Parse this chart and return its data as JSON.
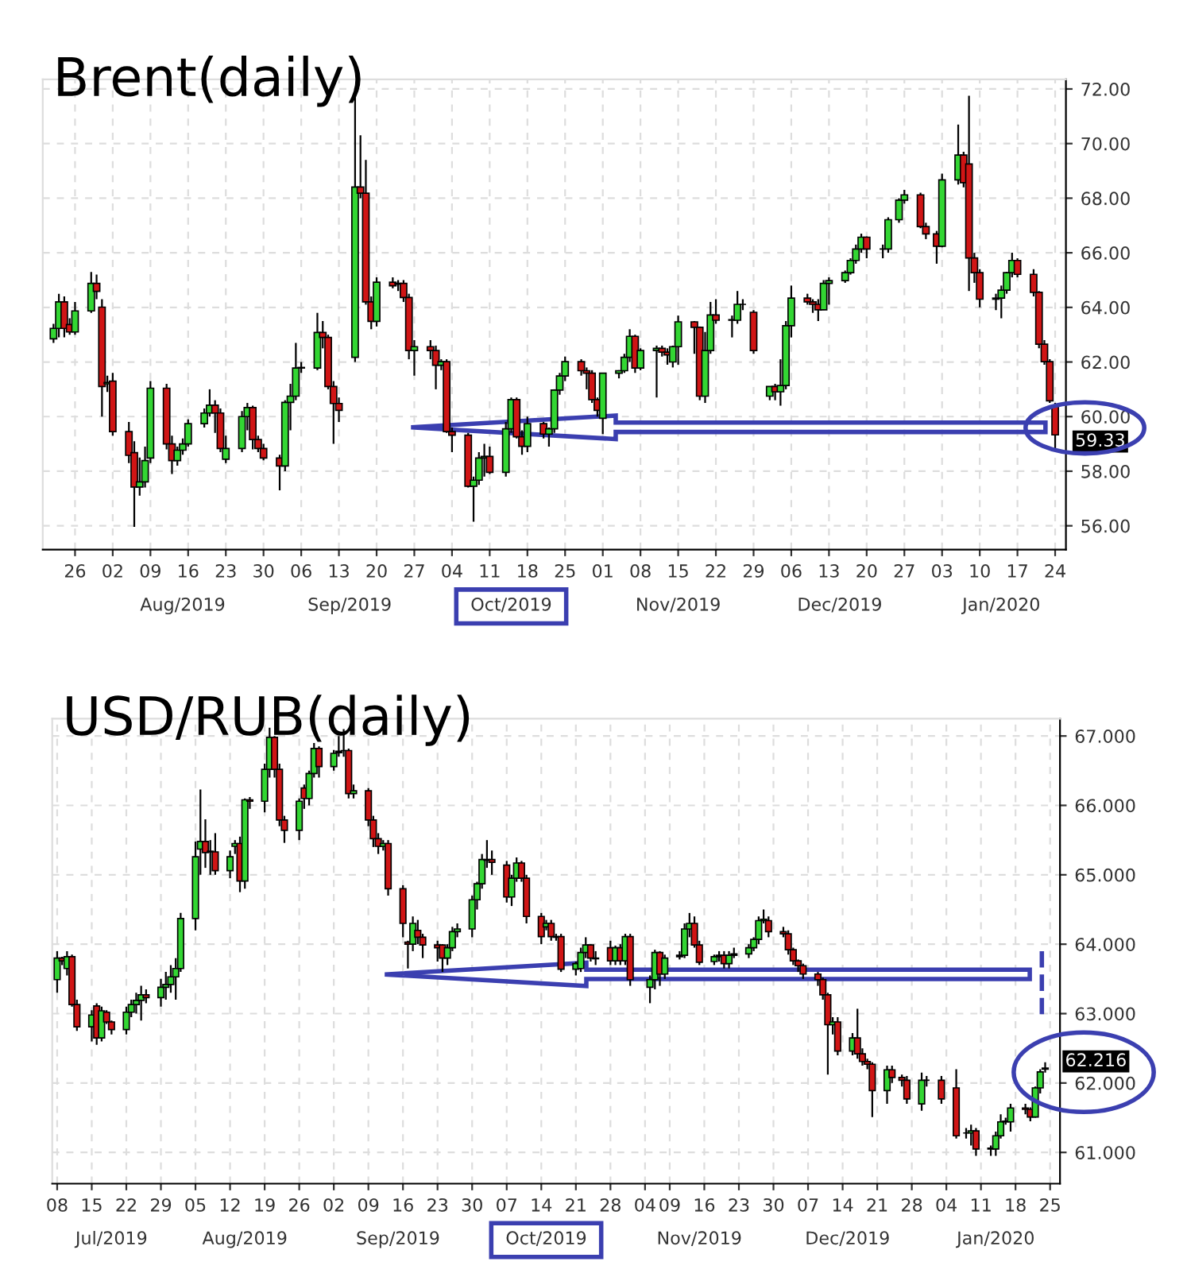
{
  "chart_data": [
    {
      "type": "candlestick",
      "title": "Brent(daily)",
      "x": [
        "2019-07-22",
        "2019-07-23",
        "2019-07-24",
        "2019-07-25",
        "2019-07-26",
        "2019-07-29",
        "2019-07-30",
        "2019-07-31",
        "2019-08-01",
        "2019-08-02",
        "2019-08-05",
        "2019-08-06",
        "2019-08-07",
        "2019-08-08",
        "2019-08-09",
        "2019-08-12",
        "2019-08-13",
        "2019-08-14",
        "2019-08-15",
        "2019-08-16",
        "2019-08-19",
        "2019-08-20",
        "2019-08-21",
        "2019-08-22",
        "2019-08-23",
        "2019-08-26",
        "2019-08-27",
        "2019-08-28",
        "2019-08-29",
        "2019-08-30",
        "2019-09-02",
        "2019-09-03",
        "2019-09-04",
        "2019-09-05",
        "2019-09-06",
        "2019-09-09",
        "2019-09-10",
        "2019-09-11",
        "2019-09-12",
        "2019-09-13",
        "2019-09-16",
        "2019-09-17",
        "2019-09-18",
        "2019-09-19",
        "2019-09-20",
        "2019-09-23",
        "2019-09-24",
        "2019-09-25",
        "2019-09-26",
        "2019-09-27",
        "2019-09-30",
        "2019-10-01",
        "2019-10-02",
        "2019-10-03",
        "2019-10-04",
        "2019-10-07",
        "2019-10-08",
        "2019-10-09",
        "2019-10-10",
        "2019-10-11",
        "2019-10-14",
        "2019-10-15",
        "2019-10-16",
        "2019-10-17",
        "2019-10-18",
        "2019-10-21",
        "2019-10-22",
        "2019-10-23",
        "2019-10-24",
        "2019-10-25",
        "2019-10-28",
        "2019-10-29",
        "2019-10-30",
        "2019-10-31",
        "2019-11-01",
        "2019-11-04",
        "2019-11-05",
        "2019-11-06",
        "2019-11-07",
        "2019-11-08",
        "2019-11-11",
        "2019-11-12",
        "2019-11-13",
        "2019-11-14",
        "2019-11-15",
        "2019-11-18",
        "2019-11-19",
        "2019-11-20",
        "2019-11-21",
        "2019-11-22",
        "2019-11-25",
        "2019-11-26",
        "2019-11-27",
        "2019-11-29",
        "2019-12-02",
        "2019-12-03",
        "2019-12-04",
        "2019-12-05",
        "2019-12-06",
        "2019-12-09",
        "2019-12-10",
        "2019-12-11",
        "2019-12-12",
        "2019-12-13",
        "2019-12-16",
        "2019-12-17",
        "2019-12-18",
        "2019-12-19",
        "2019-12-20",
        "2019-12-23",
        "2019-12-24",
        "2019-12-26",
        "2019-12-27",
        "2019-12-30",
        "2019-12-31",
        "2020-01-02",
        "2020-01-03",
        "2020-01-06",
        "2020-01-07",
        "2020-01-08",
        "2020-01-09",
        "2020-01-10",
        "2020-01-13",
        "2020-01-14",
        "2020-01-15",
        "2020-01-16",
        "2020-01-17",
        "2020-01-20",
        "2020-01-21",
        "2020-01-22",
        "2020-01-23",
        "2020-01-24"
      ],
      "ohlc": [
        [
          62.85,
          63.4,
          62.7,
          63.23
        ],
        [
          63.23,
          64.5,
          62.9,
          64.2
        ],
        [
          64.2,
          64.4,
          62.9,
          63.23
        ],
        [
          63.37,
          63.6,
          63.0,
          63.1
        ],
        [
          63.1,
          64.2,
          63.0,
          63.87
        ],
        [
          63.87,
          65.3,
          63.8,
          64.88
        ],
        [
          64.88,
          65.2,
          64.3,
          64.59
        ],
        [
          64.01,
          64.3,
          60.0,
          61.1
        ],
        [
          61.2,
          61.5,
          60.9,
          61.25
        ],
        [
          61.3,
          61.6,
          59.3,
          59.45
        ],
        [
          59.45,
          59.8,
          58.3,
          58.58
        ],
        [
          58.68,
          59.1,
          55.96,
          57.42
        ],
        [
          57.42,
          58.5,
          57.1,
          57.61
        ],
        [
          57.61,
          58.9,
          57.4,
          58.39
        ],
        [
          58.48,
          61.3,
          58.3,
          61.04
        ],
        [
          61.04,
          61.2,
          58.8,
          59.0
        ],
        [
          59.0,
          59.3,
          57.9,
          58.39
        ],
        [
          58.39,
          58.9,
          58.2,
          58.77
        ],
        [
          58.77,
          59.2,
          58.6,
          59.0
        ],
        [
          59.0,
          59.9,
          58.9,
          59.74
        ],
        [
          59.74,
          60.3,
          59.6,
          60.13
        ],
        [
          60.13,
          61.0,
          60.0,
          60.42
        ],
        [
          60.42,
          60.6,
          59.4,
          60.13
        ],
        [
          60.13,
          60.3,
          58.7,
          58.83
        ],
        [
          58.44,
          59.3,
          58.3,
          58.83
        ],
        [
          58.83,
          60.2,
          58.7,
          60.0
        ],
        [
          60.0,
          60.5,
          59.5,
          60.33
        ],
        [
          60.33,
          60.4,
          58.8,
          59.16
        ],
        [
          59.16,
          59.3,
          58.7,
          58.83
        ],
        [
          58.83,
          59.0,
          58.4,
          58.48
        ],
        [
          58.48,
          58.6,
          57.3,
          58.19
        ],
        [
          58.19,
          60.6,
          58.0,
          60.52
        ],
        [
          60.52,
          61.2,
          59.5,
          60.75
        ],
        [
          60.75,
          62.7,
          60.6,
          61.78
        ],
        [
          61.78,
          62.0,
          61.6,
          61.8
        ],
        [
          61.78,
          63.8,
          61.7,
          63.08
        ],
        [
          63.08,
          63.5,
          62.5,
          62.9
        ],
        [
          62.9,
          63.0,
          61.0,
          61.1
        ],
        [
          61.1,
          61.3,
          59.0,
          60.48
        ],
        [
          60.48,
          60.7,
          59.8,
          60.23
        ],
        [
          62.17,
          71.8,
          62.0,
          68.41
        ],
        [
          68.41,
          70.3,
          68.0,
          68.18
        ],
        [
          68.18,
          69.4,
          64.1,
          64.2
        ],
        [
          64.2,
          64.4,
          63.2,
          63.49
        ],
        [
          63.49,
          65.1,
          63.3,
          64.92
        ],
        [
          64.92,
          65.1,
          64.7,
          64.79
        ],
        [
          64.85,
          65.0,
          64.6,
          64.88
        ],
        [
          64.88,
          65.0,
          64.2,
          64.36
        ],
        [
          64.36,
          64.5,
          62.1,
          62.42
        ],
        [
          62.42,
          62.8,
          61.5,
          62.56
        ],
        [
          62.56,
          62.8,
          62.1,
          62.42
        ],
        [
          62.42,
          62.6,
          61.0,
          61.88
        ],
        [
          61.88,
          62.1,
          61.7,
          62.01
        ],
        [
          62.01,
          62.1,
          59.4,
          59.45
        ],
        [
          59.45,
          59.6,
          58.7,
          59.32
        ],
        [
          59.32,
          59.4,
          57.4,
          57.45
        ],
        [
          57.45,
          57.8,
          56.15,
          57.67
        ],
        [
          57.67,
          58.7,
          57.5,
          58.48
        ],
        [
          58.48,
          59.0,
          57.8,
          58.54
        ],
        [
          58.54,
          58.9,
          57.9,
          57.96
        ],
        [
          57.96,
          59.8,
          57.8,
          59.55
        ],
        [
          59.55,
          60.7,
          59.4,
          60.62
        ],
        [
          60.62,
          60.7,
          59.2,
          59.26
        ],
        [
          59.26,
          59.5,
          58.6,
          58.91
        ],
        [
          58.91,
          60.0,
          58.7,
          59.74
        ],
        [
          59.74,
          59.8,
          59.2,
          59.36
        ],
        [
          59.36,
          59.6,
          58.9,
          59.55
        ],
        [
          59.55,
          61.0,
          59.4,
          60.97
        ],
        [
          60.97,
          61.6,
          60.8,
          61.49
        ],
        [
          61.49,
          62.2,
          61.3,
          62.01
        ],
        [
          62.01,
          62.1,
          61.5,
          61.68
        ],
        [
          61.68,
          61.8,
          61.0,
          61.59
        ],
        [
          61.59,
          61.7,
          60.5,
          60.62
        ],
        [
          60.62,
          60.7,
          60.0,
          60.23
        ],
        [
          59.94,
          61.6,
          59.36,
          61.59
        ],
        [
          61.59,
          61.7,
          61.4,
          61.68
        ],
        [
          61.68,
          62.3,
          61.6,
          62.17
        ],
        [
          62.17,
          63.2,
          62.0,
          62.94
        ],
        [
          62.94,
          63.0,
          61.6,
          61.78
        ],
        [
          61.78,
          62.5,
          61.7,
          62.42
        ],
        [
          62.42,
          62.6,
          60.7,
          62.5
        ],
        [
          62.5,
          62.6,
          62.2,
          62.36
        ],
        [
          62.36,
          62.5,
          61.9,
          62.26
        ],
        [
          62.0,
          62.6,
          61.8,
          62.56
        ],
        [
          62.56,
          63.7,
          61.9,
          63.47
        ],
        [
          63.47,
          63.5,
          62.3,
          63.27
        ],
        [
          63.27,
          63.3,
          60.6,
          60.75
        ],
        [
          60.75,
          63.1,
          60.5,
          62.42
        ],
        [
          62.42,
          64.2,
          62.3,
          63.72
        ],
        [
          63.72,
          64.3,
          63.4,
          63.53
        ],
        [
          63.53,
          63.7,
          62.9,
          63.55
        ],
        [
          63.53,
          64.6,
          63.4,
          64.11
        ],
        [
          64.11,
          64.3,
          63.9,
          64.11
        ],
        [
          63.82,
          63.9,
          62.3,
          62.42
        ],
        [
          60.75,
          61.1,
          60.6,
          61.1
        ],
        [
          61.1,
          61.2,
          60.6,
          60.91
        ],
        [
          60.91,
          62.1,
          60.4,
          61.14
        ],
        [
          61.14,
          63.5,
          61.0,
          63.33
        ],
        [
          63.33,
          64.8,
          62.9,
          64.34
        ],
        [
          64.34,
          64.5,
          64.1,
          64.2
        ],
        [
          64.2,
          64.3,
          63.8,
          64.11
        ],
        [
          64.11,
          64.3,
          63.5,
          63.91
        ],
        [
          63.91,
          65.0,
          63.9,
          64.88
        ],
        [
          64.88,
          65.1,
          64.1,
          64.98
        ],
        [
          64.98,
          65.35,
          64.9,
          65.27
        ],
        [
          65.27,
          65.8,
          65.2,
          65.72
        ],
        [
          65.72,
          66.3,
          65.6,
          66.14
        ],
        [
          66.14,
          66.7,
          66.0,
          66.57
        ],
        [
          66.57,
          66.6,
          65.8,
          66.14
        ],
        [
          66.14,
          66.3,
          65.8,
          66.14
        ],
        [
          66.14,
          67.3,
          66.0,
          67.21
        ],
        [
          67.21,
          68.0,
          67.1,
          67.93
        ],
        [
          67.93,
          68.3,
          67.8,
          68.12
        ],
        [
          68.12,
          68.2,
          66.9,
          66.96
        ],
        [
          66.96,
          67.1,
          66.5,
          66.69
        ],
        [
          66.69,
          66.8,
          65.6,
          66.24
        ],
        [
          66.24,
          68.9,
          66.2,
          68.67
        ],
        [
          68.67,
          70.7,
          68.5,
          69.58
        ],
        [
          69.58,
          69.7,
          68.4,
          68.57
        ],
        [
          69.25,
          71.75,
          64.6,
          65.81
        ],
        [
          65.81,
          66.0,
          64.9,
          65.27
        ],
        [
          65.27,
          65.4,
          64.0,
          64.3
        ],
        [
          64.3,
          64.5,
          63.9,
          64.34
        ],
        [
          64.34,
          64.8,
          63.6,
          64.63
        ],
        [
          64.63,
          65.3,
          64.5,
          65.27
        ],
        [
          65.27,
          66.0,
          65.1,
          65.72
        ],
        [
          65.72,
          65.8,
          65.1,
          65.21
        ],
        [
          65.21,
          65.4,
          64.4,
          64.55
        ],
        [
          64.55,
          64.6,
          62.5,
          62.65
        ],
        [
          62.65,
          62.8,
          61.9,
          62.01
        ],
        [
          62.01,
          62.1,
          60.5,
          60.58
        ],
        [
          60.38,
          60.5,
          58.8,
          59.33
        ]
      ],
      "xlim": [
        "2019-07-20",
        "2020-01-26"
      ],
      "x2lim": [
        "2019-07-20",
        "2020-01-26"
      ],
      "ylim": [
        55.13,
        72.35
      ],
      "xticks": [
        {
          "value": "2019-07-26",
          "label": "26"
        },
        {
          "value": "2019-08-02",
          "label": "02"
        },
        {
          "value": "2019-08-09",
          "label": "09"
        },
        {
          "value": "2019-08-16",
          "label": "16"
        },
        {
          "value": "2019-08-23",
          "label": "23"
        },
        {
          "value": "2019-08-30",
          "label": "30"
        },
        {
          "value": "2019-09-06",
          "label": "06"
        },
        {
          "value": "2019-09-13",
          "label": "13"
        },
        {
          "value": "2019-09-20",
          "label": "20"
        },
        {
          "value": "2019-09-27",
          "label": "27"
        },
        {
          "value": "2019-10-04",
          "label": "04"
        },
        {
          "value": "2019-10-11",
          "label": "11"
        },
        {
          "value": "2019-10-18",
          "label": "18"
        },
        {
          "value": "2019-10-25",
          "label": "25"
        },
        {
          "value": "2019-11-01",
          "label": "01"
        },
        {
          "value": "2019-11-08",
          "label": "08"
        },
        {
          "value": "2019-11-15",
          "label": "15"
        },
        {
          "value": "2019-11-22",
          "label": "22"
        },
        {
          "value": "2019-11-29",
          "label": "29"
        },
        {
          "value": "2019-12-06",
          "label": "06"
        },
        {
          "value": "2019-12-13",
          "label": "13"
        },
        {
          "value": "2019-12-20",
          "label": "20"
        },
        {
          "value": "2019-12-27",
          "label": "27"
        },
        {
          "value": "2020-01-03",
          "label": "03"
        },
        {
          "value": "2020-01-10",
          "label": "10"
        },
        {
          "value": "2020-01-17",
          "label": "17"
        },
        {
          "value": "2020-01-24",
          "label": "24"
        }
      ],
      "x2ticks": [
        {
          "value": "2019-08-15",
          "label": "Aug/2019"
        },
        {
          "value": "2019-09-15",
          "label": "Sep/2019"
        },
        {
          "value": "2019-10-15",
          "label": "Oct/2019"
        },
        {
          "value": "2019-11-15",
          "label": "Nov/2019"
        },
        {
          "value": "2019-12-15",
          "label": "Dec/2019"
        },
        {
          "value": "2020-01-14",
          "label": "Jan/2020"
        }
      ],
      "yticks": [
        {
          "value": 56,
          "label": "56.00"
        },
        {
          "value": 58,
          "label": "58.00"
        },
        {
          "value": 60,
          "label": "60.00"
        },
        {
          "value": 62,
          "label": "62.00"
        },
        {
          "value": 64,
          "label": "64.00"
        },
        {
          "value": 66,
          "label": "66.00"
        },
        {
          "value": 68,
          "label": "68.00"
        },
        {
          "value": 70,
          "label": "70.00"
        },
        {
          "value": 72,
          "label": "72.00"
        }
      ],
      "annotations": [
        {
          "text": "59.33",
          "x": "2020-01-24",
          "y": 59.33
        }
      ],
      "grid": true
    },
    {
      "type": "candlestick",
      "title": "USD/RUB(daily)",
      "x": [
        "2019-07-08",
        "2019-07-09",
        "2019-07-10",
        "2019-07-11",
        "2019-07-12",
        "2019-07-15",
        "2019-07-16",
        "2019-07-17",
        "2019-07-18",
        "2019-07-19",
        "2019-07-22",
        "2019-07-23",
        "2019-07-24",
        "2019-07-25",
        "2019-07-26",
        "2019-07-29",
        "2019-07-30",
        "2019-07-31",
        "2019-08-01",
        "2019-08-02",
        "2019-08-05",
        "2019-08-06",
        "2019-08-07",
        "2019-08-08",
        "2019-08-09",
        "2019-08-12",
        "2019-08-13",
        "2019-08-14",
        "2019-08-15",
        "2019-08-16",
        "2019-08-19",
        "2019-08-20",
        "2019-08-21",
        "2019-08-22",
        "2019-08-23",
        "2019-08-26",
        "2019-08-27",
        "2019-08-28",
        "2019-08-29",
        "2019-08-30",
        "2019-09-02",
        "2019-09-03",
        "2019-09-04",
        "2019-09-05",
        "2019-09-06",
        "2019-09-09",
        "2019-09-10",
        "2019-09-11",
        "2019-09-12",
        "2019-09-13",
        "2019-09-16",
        "2019-09-17",
        "2019-09-18",
        "2019-09-19",
        "2019-09-20",
        "2019-09-23",
        "2019-09-24",
        "2019-09-25",
        "2019-09-26",
        "2019-09-27",
        "2019-09-30",
        "2019-10-01",
        "2019-10-02",
        "2019-10-03",
        "2019-10-04",
        "2019-10-07",
        "2019-10-08",
        "2019-10-09",
        "2019-10-10",
        "2019-10-11",
        "2019-10-14",
        "2019-10-15",
        "2019-10-16",
        "2019-10-17",
        "2019-10-18",
        "2019-10-21",
        "2019-10-22",
        "2019-10-23",
        "2019-10-24",
        "2019-10-25",
        "2019-10-28",
        "2019-10-29",
        "2019-10-30",
        "2019-10-31",
        "2019-11-01",
        "2019-11-05",
        "2019-11-06",
        "2019-11-07",
        "2019-11-08",
        "2019-11-11",
        "2019-11-12",
        "2019-11-13",
        "2019-11-14",
        "2019-11-15",
        "2019-11-18",
        "2019-11-19",
        "2019-11-20",
        "2019-11-21",
        "2019-11-22",
        "2019-11-25",
        "2019-11-26",
        "2019-11-27",
        "2019-11-28",
        "2019-11-29",
        "2019-12-02",
        "2019-12-03",
        "2019-12-04",
        "2019-12-05",
        "2019-12-06",
        "2019-12-09",
        "2019-12-10",
        "2019-12-11",
        "2019-12-12",
        "2019-12-13",
        "2019-12-16",
        "2019-12-17",
        "2019-12-18",
        "2019-12-19",
        "2019-12-20",
        "2019-12-23",
        "2019-12-24",
        "2019-12-26",
        "2019-12-27",
        "2019-12-30",
        "2019-12-31",
        "2020-01-03",
        "2020-01-06",
        "2020-01-08",
        "2020-01-09",
        "2020-01-10",
        "2020-01-13",
        "2020-01-14",
        "2020-01-15",
        "2020-01-16",
        "2020-01-17",
        "2020-01-20",
        "2020-01-21",
        "2020-01-22",
        "2020-01-23",
        "2020-01-24"
      ],
      "ohlc": [
        [
          63.49,
          63.9,
          63.3,
          63.8
        ],
        [
          63.8,
          63.82,
          63.7,
          63.76
        ],
        [
          63.65,
          63.9,
          63.55,
          63.82
        ],
        [
          63.82,
          63.85,
          63.1,
          63.13
        ],
        [
          63.13,
          63.2,
          62.75,
          62.81
        ],
        [
          62.81,
          63.05,
          62.6,
          62.98
        ],
        [
          63.11,
          63.15,
          62.55,
          62.65
        ],
        [
          62.65,
          63.1,
          62.6,
          63.04
        ],
        [
          63.02,
          63.05,
          62.85,
          62.88
        ],
        [
          62.88,
          62.9,
          62.7,
          62.77
        ],
        [
          62.77,
          63.1,
          62.7,
          63.02
        ],
        [
          63.02,
          63.2,
          62.95,
          63.13
        ],
        [
          63.13,
          63.3,
          63.0,
          63.19
        ],
        [
          63.19,
          63.4,
          62.9,
          63.27
        ],
        [
          63.27,
          63.35,
          63.15,
          63.23
        ],
        [
          63.23,
          63.5,
          63.1,
          63.38
        ],
        [
          63.38,
          63.6,
          63.2,
          63.42
        ],
        [
          63.42,
          63.7,
          63.3,
          63.53
        ],
        [
          63.53,
          63.8,
          63.2,
          63.65
        ],
        [
          63.65,
          64.45,
          63.6,
          64.37
        ],
        [
          64.37,
          65.48,
          64.2,
          65.26
        ],
        [
          65.37,
          66.23,
          65.0,
          65.48
        ],
        [
          65.48,
          65.8,
          65.1,
          65.32
        ],
        [
          65.33,
          65.5,
          65.0,
          65.34
        ],
        [
          65.33,
          65.6,
          65.0,
          65.06
        ],
        [
          65.06,
          65.35,
          64.95,
          65.26
        ],
        [
          65.41,
          65.5,
          65.3,
          65.45
        ],
        [
          65.45,
          65.55,
          64.75,
          64.91
        ],
        [
          64.91,
          66.1,
          64.8,
          66.08
        ],
        [
          66.08,
          66.12,
          65.95,
          66.06
        ],
        [
          66.06,
          66.6,
          65.9,
          66.52
        ],
        [
          66.52,
          67.12,
          66.4,
          66.98
        ],
        [
          66.98,
          67.0,
          66.4,
          66.52
        ],
        [
          66.52,
          66.6,
          65.7,
          65.79
        ],
        [
          65.79,
          65.85,
          65.46,
          65.64
        ],
        [
          65.64,
          66.1,
          65.5,
          66.06
        ],
        [
          66.25,
          66.3,
          65.95,
          66.1
        ],
        [
          66.1,
          66.5,
          66.0,
          66.46
        ],
        [
          66.46,
          66.9,
          66.4,
          66.82
        ],
        [
          66.82,
          66.85,
          66.4,
          66.56
        ],
        [
          66.56,
          66.8,
          66.5,
          66.75
        ],
        [
          66.76,
          67.0,
          66.7,
          66.78
        ],
        [
          66.79,
          67.1,
          66.7,
          66.79
        ],
        [
          66.79,
          66.82,
          66.1,
          66.17
        ],
        [
          66.17,
          66.3,
          66.1,
          66.21
        ],
        [
          66.21,
          66.25,
          65.7,
          65.79
        ],
        [
          65.79,
          65.85,
          65.4,
          65.52
        ],
        [
          65.52,
          65.6,
          65.3,
          65.41
        ],
        [
          65.41,
          65.5,
          65.35,
          65.45
        ],
        [
          65.45,
          65.5,
          64.7,
          64.8
        ],
        [
          64.8,
          64.85,
          64.1,
          64.3
        ],
        [
          64.03,
          64.05,
          63.65,
          64.0
        ],
        [
          64.0,
          64.4,
          63.9,
          64.3
        ],
        [
          64.2,
          64.35,
          64.0,
          64.1
        ],
        [
          64.1,
          64.15,
          63.8,
          63.99
        ],
        [
          63.99,
          64.05,
          63.75,
          63.95
        ],
        [
          63.99,
          64.0,
          63.6,
          63.8
        ],
        [
          63.8,
          64.0,
          63.7,
          63.95
        ],
        [
          63.95,
          64.25,
          63.9,
          64.18
        ],
        [
          64.18,
          64.3,
          64.1,
          64.22
        ],
        [
          64.22,
          64.7,
          64.1,
          64.64
        ],
        [
          64.64,
          64.9,
          64.5,
          64.87
        ],
        [
          64.87,
          65.3,
          64.8,
          65.22
        ],
        [
          65.22,
          65.5,
          65.1,
          65.21
        ],
        [
          65.22,
          65.35,
          65.0,
          65.18
        ],
        [
          65.14,
          65.2,
          64.6,
          64.68
        ],
        [
          64.68,
          65.0,
          64.55,
          64.95
        ],
        [
          64.95,
          65.25,
          64.9,
          65.17
        ],
        [
          65.17,
          65.2,
          64.9,
          64.95
        ],
        [
          64.95,
          65.0,
          64.3,
          64.4
        ],
        [
          64.4,
          64.45,
          64.0,
          64.11
        ],
        [
          64.25,
          64.35,
          64.2,
          64.3
        ],
        [
          64.3,
          64.35,
          64.05,
          64.11
        ],
        [
          64.11,
          64.15,
          64.05,
          64.1
        ],
        [
          64.11,
          64.15,
          63.6,
          63.64
        ],
        [
          63.64,
          63.75,
          63.55,
          63.72
        ],
        [
          63.65,
          63.95,
          63.6,
          63.88
        ],
        [
          63.88,
          64.1,
          63.8,
          63.99
        ],
        [
          63.99,
          64.0,
          63.75,
          63.8
        ],
        [
          63.8,
          63.9,
          63.7,
          63.79
        ],
        [
          63.95,
          64.05,
          63.7,
          63.76
        ],
        [
          63.76,
          63.98,
          63.7,
          63.95
        ],
        [
          63.95,
          64.0,
          63.7,
          63.76
        ],
        [
          63.76,
          64.15,
          63.7,
          64.11
        ],
        [
          64.11,
          64.15,
          63.4,
          63.49
        ],
        [
          63.38,
          63.55,
          63.15,
          63.49
        ],
        [
          63.49,
          63.92,
          63.35,
          63.88
        ],
        [
          63.88,
          63.9,
          63.4,
          63.57
        ],
        [
          63.57,
          63.85,
          63.5,
          63.8
        ],
        [
          63.82,
          63.9,
          63.78,
          63.84
        ],
        [
          63.84,
          64.3,
          63.8,
          64.22
        ],
        [
          64.22,
          64.45,
          64.1,
          64.3
        ],
        [
          64.3,
          64.4,
          63.95,
          63.99
        ],
        [
          63.99,
          64.05,
          63.7,
          63.74
        ],
        [
          63.75,
          63.85,
          63.7,
          63.82
        ],
        [
          63.82,
          63.9,
          63.75,
          63.84
        ],
        [
          63.84,
          63.9,
          63.65,
          63.72
        ],
        [
          63.72,
          63.9,
          63.65,
          63.84
        ],
        [
          63.84,
          63.95,
          63.8,
          63.86
        ],
        [
          63.86,
          64.0,
          63.8,
          63.95
        ],
        [
          63.95,
          64.1,
          63.9,
          64.07
        ],
        [
          64.07,
          64.4,
          64.0,
          64.34
        ],
        [
          64.34,
          64.5,
          64.3,
          64.36
        ],
        [
          64.34,
          64.4,
          64.1,
          64.18
        ],
        [
          64.18,
          64.25,
          64.1,
          64.15
        ],
        [
          64.15,
          64.2,
          63.85,
          63.92
        ],
        [
          63.92,
          63.95,
          63.7,
          63.76
        ],
        [
          63.76,
          63.78,
          63.6,
          63.69
        ],
        [
          63.69,
          63.72,
          63.5,
          63.57
        ],
        [
          63.57,
          63.6,
          63.4,
          63.49
        ],
        [
          63.49,
          63.52,
          63.2,
          63.27
        ],
        [
          63.27,
          63.3,
          62.12,
          62.84
        ],
        [
          62.84,
          62.95,
          62.7,
          62.88
        ],
        [
          62.88,
          62.95,
          62.4,
          62.46
        ],
        [
          62.46,
          62.72,
          62.4,
          62.65
        ],
        [
          62.65,
          63.07,
          62.35,
          62.42
        ],
        [
          62.42,
          62.5,
          62.25,
          62.31
        ],
        [
          62.31,
          62.35,
          62.2,
          62.27
        ],
        [
          62.27,
          62.3,
          61.51,
          61.89
        ],
        [
          61.89,
          62.25,
          61.7,
          62.19
        ],
        [
          62.19,
          62.25,
          62.0,
          62.08
        ],
        [
          62.08,
          62.12,
          61.95,
          62.04
        ],
        [
          62.04,
          62.1,
          61.7,
          61.77
        ],
        [
          61.7,
          62.15,
          61.6,
          62.04
        ],
        [
          62.04,
          62.1,
          61.95,
          62.04
        ],
        [
          62.04,
          62.1,
          61.7,
          61.77
        ],
        [
          61.93,
          62.2,
          61.2,
          61.24
        ],
        [
          61.28,
          61.35,
          61.2,
          61.28
        ],
        [
          61.28,
          61.4,
          61.1,
          61.31
        ],
        [
          61.31,
          61.35,
          60.95,
          61.05
        ],
        [
          61.05,
          61.1,
          60.95,
          61.06
        ],
        [
          61.05,
          61.3,
          60.95,
          61.24
        ],
        [
          61.24,
          61.55,
          61.2,
          61.44
        ],
        [
          61.44,
          61.5,
          61.4,
          61.45
        ],
        [
          61.44,
          61.7,
          61.3,
          61.64
        ],
        [
          61.64,
          61.7,
          61.55,
          61.62
        ],
        [
          61.62,
          61.65,
          61.45,
          61.51
        ],
        [
          61.51,
          61.95,
          61.5,
          61.93
        ],
        [
          61.93,
          62.2,
          61.85,
          62.16
        ],
        [
          62.2,
          62.3,
          62.15,
          62.216
        ]
      ],
      "xlim": [
        "2019-07-07",
        "2020-01-27"
      ],
      "x2lim": [
        "2019-07-07",
        "2020-01-27"
      ],
      "ylim": [
        60.55,
        67.25
      ],
      "xticks": [
        {
          "value": "2019-07-08",
          "label": "08"
        },
        {
          "value": "2019-07-15",
          "label": "15"
        },
        {
          "value": "2019-07-22",
          "label": "22"
        },
        {
          "value": "2019-07-29",
          "label": "29"
        },
        {
          "value": "2019-08-05",
          "label": "05"
        },
        {
          "value": "2019-08-12",
          "label": "12"
        },
        {
          "value": "2019-08-19",
          "label": "19"
        },
        {
          "value": "2019-08-26",
          "label": "26"
        },
        {
          "value": "2019-09-02",
          "label": "02"
        },
        {
          "value": "2019-09-09",
          "label": "09"
        },
        {
          "value": "2019-09-16",
          "label": "16"
        },
        {
          "value": "2019-09-23",
          "label": "23"
        },
        {
          "value": "2019-09-30",
          "label": "30"
        },
        {
          "value": "2019-10-07",
          "label": "07"
        },
        {
          "value": "2019-10-14",
          "label": "14"
        },
        {
          "value": "2019-10-21",
          "label": "21"
        },
        {
          "value": "2019-10-28",
          "label": "28"
        },
        {
          "value": "2019-11-04",
          "label": "04"
        },
        {
          "value": "2019-11-09",
          "label": "09"
        },
        {
          "value": "2019-11-16",
          "label": "16"
        },
        {
          "value": "2019-11-23",
          "label": "23"
        },
        {
          "value": "2019-11-30",
          "label": "30"
        },
        {
          "value": "2019-12-07",
          "label": "07"
        },
        {
          "value": "2019-12-14",
          "label": "14"
        },
        {
          "value": "2019-12-21",
          "label": "21"
        },
        {
          "value": "2019-12-28",
          "label": "28"
        },
        {
          "value": "2020-01-04",
          "label": "04"
        },
        {
          "value": "2020-01-11",
          "label": "11"
        },
        {
          "value": "2020-01-18",
          "label": "18"
        },
        {
          "value": "2020-01-25",
          "label": "25"
        }
      ],
      "x2ticks": [
        {
          "value": "2019-07-19",
          "label": "Jul/2019"
        },
        {
          "value": "2019-08-15",
          "label": "Aug/2019"
        },
        {
          "value": "2019-09-15",
          "label": "Sep/2019"
        },
        {
          "value": "2019-10-15",
          "label": "Oct/2019"
        },
        {
          "value": "2019-11-15",
          "label": "Nov/2019"
        },
        {
          "value": "2019-12-15",
          "label": "Dec/2019"
        },
        {
          "value": "2020-01-14",
          "label": "Jan/2020"
        }
      ],
      "yticks": [
        {
          "value": 61,
          "label": "61.000"
        },
        {
          "value": 62,
          "label": "62.000"
        },
        {
          "value": 63,
          "label": "63.000"
        },
        {
          "value": 64,
          "label": "64.000"
        },
        {
          "value": 65,
          "label": "65.000"
        },
        {
          "value": 66,
          "label": "66.000"
        },
        {
          "value": 67,
          "label": "67.000"
        }
      ],
      "annotations": [
        {
          "text": "62.216",
          "x": "2020-01-24",
          "y": 62.216
        }
      ],
      "grid": true
    }
  ]
}
